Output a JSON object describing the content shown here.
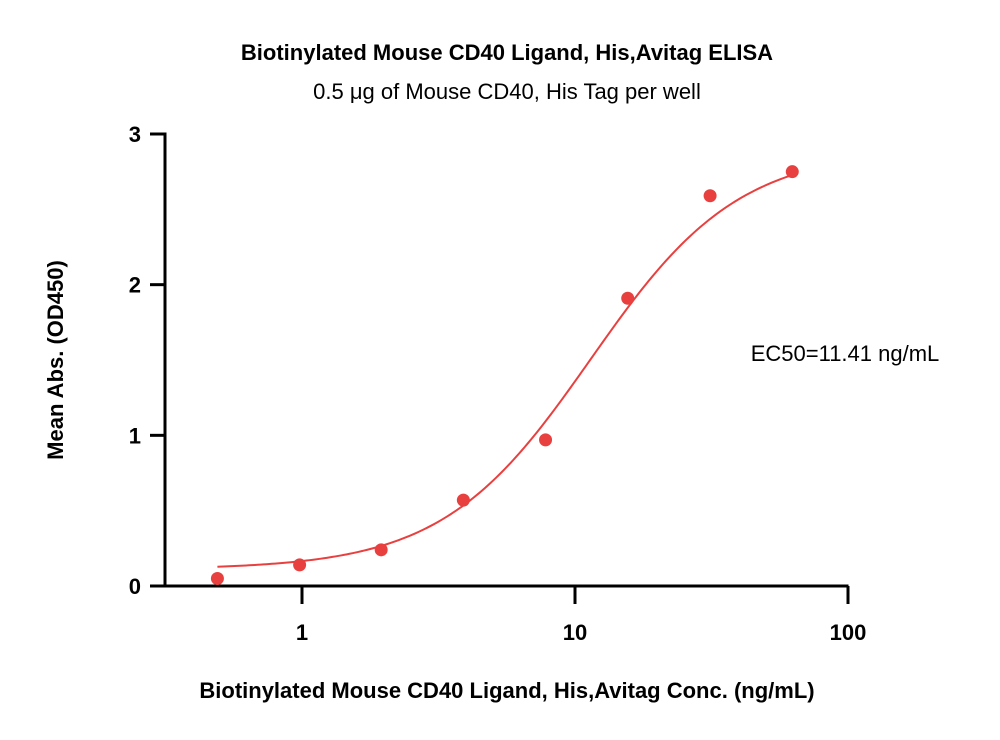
{
  "chart_data": {
    "type": "scatter",
    "title": "Biotinylated Mouse CD40 Ligand, His,Avitag ELISA",
    "subtitle": "0.5 μg of Mouse CD40, His Tag per well",
    "xlabel": "Biotinylated Mouse CD40 Ligand, His,Avitag Conc. (ng/mL)",
    "ylabel": "Mean Abs. (OD450)",
    "x_scale": "log",
    "xlim": [
      0.4,
      100
    ],
    "ylim": [
      0,
      3
    ],
    "x_ticks": [
      1,
      10,
      100
    ],
    "x_tick_labels": [
      "1",
      "10",
      "100"
    ],
    "y_ticks": [
      0,
      1,
      2,
      3
    ],
    "y_tick_labels": [
      "0",
      "1",
      "2",
      "3"
    ],
    "grid": false,
    "legend": "none",
    "colors": {
      "series": "#e8403f",
      "axis": "#000000"
    },
    "series": [
      {
        "x": [
          0.49,
          0.98,
          1.95,
          3.9,
          7.8,
          15.6,
          31.25,
          62.5
        ],
        "y": [
          0.05,
          0.14,
          0.24,
          0.57,
          0.97,
          1.91,
          2.59,
          2.75
        ]
      }
    ],
    "fit": {
      "type": "4PL",
      "bottom": 0.11,
      "top": 2.9,
      "ec50": 11.41,
      "hill": 1.6,
      "x_range": [
        0.49,
        62.5
      ]
    },
    "annotations": [
      {
        "text": "EC50=11.41 ng/mL"
      }
    ]
  }
}
